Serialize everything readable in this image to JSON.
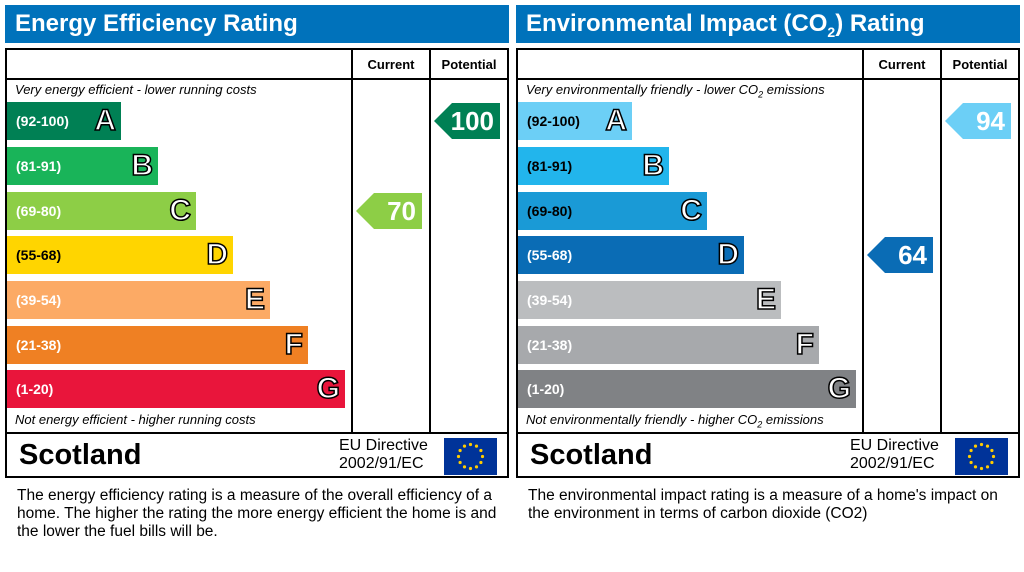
{
  "chart_data": [
    {
      "type": "bar",
      "title": "Energy Efficiency Rating",
      "column_headers": [
        "Current",
        "Potential"
      ],
      "top_label": "Very energy efficient - lower running costs",
      "bottom_label": "Not energy efficient - higher running costs",
      "bands": [
        {
          "letter": "A",
          "range": "(92-100)",
          "color": "#008054"
        },
        {
          "letter": "B",
          "range": "(81-91)",
          "color": "#19b459"
        },
        {
          "letter": "C",
          "range": "(69-80)",
          "color": "#8dce46"
        },
        {
          "letter": "D",
          "range": "(55-68)",
          "color": "#ffd500"
        },
        {
          "letter": "E",
          "range": "(39-54)",
          "color": "#fcaa65"
        },
        {
          "letter": "F",
          "range": "(21-38)",
          "color": "#ef8023"
        },
        {
          "letter": "G",
          "range": "(1-20)",
          "color": "#e9153b"
        }
      ],
      "current": {
        "value": 70,
        "band": "C",
        "color": "#8dce46"
      },
      "potential": {
        "value": 100,
        "band": "A",
        "color": "#008054"
      },
      "region": "Scotland",
      "directive": [
        "EU Directive",
        "2002/91/EC"
      ],
      "description": "The energy efficiency rating is a measure of the overall efficiency of a home.  The higher the rating the more energy efficient the home is and the lower the fuel bills will be.",
      "header_color": "#0072bb"
    },
    {
      "type": "bar",
      "title": "Environmental Impact (CO2) Rating",
      "column_headers": [
        "Current",
        "Potential"
      ],
      "top_label": "Very environmentally friendly - lower CO2 emissions",
      "bottom_label": "Not environmentally friendly - higher CO2 emissions",
      "bands": [
        {
          "letter": "A",
          "range": "(92-100)",
          "color": "#6ccff6"
        },
        {
          "letter": "B",
          "range": "(81-91)",
          "color": "#22b5ec"
        },
        {
          "letter": "C",
          "range": "(69-80)",
          "color": "#1a9ad6"
        },
        {
          "letter": "D",
          "range": "(55-68)",
          "color": "#0a6cb5"
        },
        {
          "letter": "E",
          "range": "(39-54)",
          "color": "#bbbdbf"
        },
        {
          "letter": "F",
          "range": "(21-38)",
          "color": "#a7a9ac"
        },
        {
          "letter": "G",
          "range": "(1-20)",
          "color": "#808285"
        }
      ],
      "current": {
        "value": 64,
        "band": "D",
        "color": "#0a6cb5"
      },
      "potential": {
        "value": 94,
        "band": "A",
        "color": "#6ccff6"
      },
      "region": "Scotland",
      "directive": [
        "EU Directive",
        "2002/91/EC"
      ],
      "description": "The environmental impact rating is a measure of a home's impact on the environment in terms of carbon dioxide (CO2)",
      "header_color": "#0072bb"
    }
  ]
}
